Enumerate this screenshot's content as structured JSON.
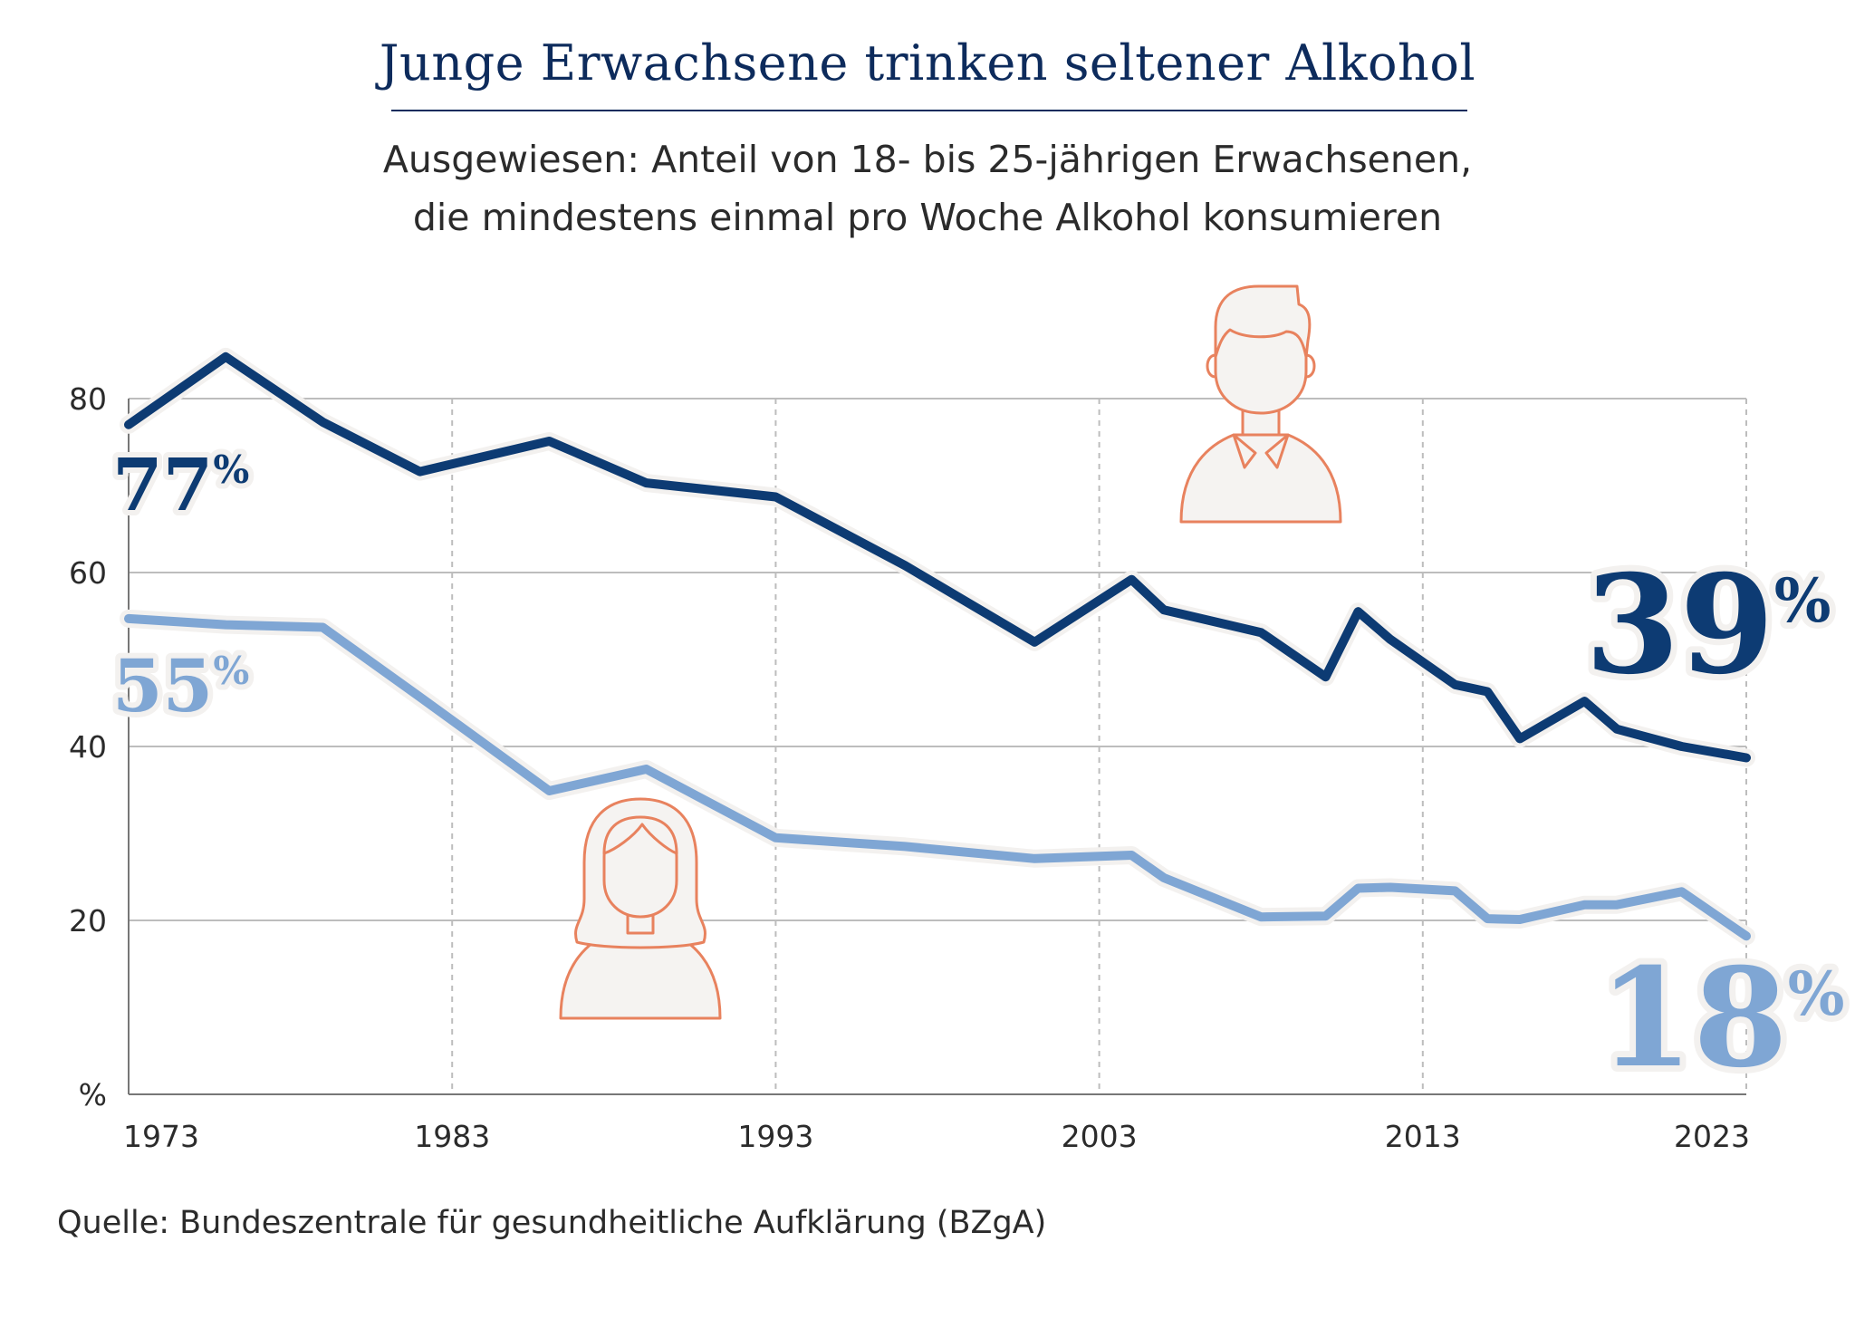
{
  "title": "Junge Erwachsene trinken seltener Alkohol",
  "subtitle_line1": "Ausgewiesen: Anteil von 18- bis 25-jährigen Erwachsenen,",
  "subtitle_line2": "die mindestens einmal pro Woche Alkohol konsumieren",
  "source": "Quelle: Bundeszentrale für gesundheitliche Aufklärung (BZgA)",
  "colors": {
    "men": "#0d3b73",
    "women": "#7fa6d4",
    "icon_stroke": "#e8825e",
    "icon_fill": "#f5f3f1",
    "grid": "#bdbdbd",
    "title": "#0d2b5c"
  },
  "icons": [
    "man-icon",
    "woman-icon"
  ],
  "chart_data": {
    "type": "line",
    "title": "Junge Erwachsene trinken seltener Alkohol",
    "ylabel": "%",
    "xlabel": "",
    "xlim": [
      1973,
      2023
    ],
    "ylim": [
      0,
      80
    ],
    "x_ticks": [
      "1973",
      "1983",
      "1993",
      "2003",
      "2013",
      "2023"
    ],
    "y_ticks": [
      "80",
      "60",
      "40",
      "20"
    ],
    "y_unit_label": "%",
    "grid": {
      "horizontal": true,
      "vertical": "dashed"
    },
    "series": [
      {
        "key": "men",
        "color": "#0d3b73",
        "start_label": "77",
        "end_label": "39",
        "points": [
          [
            1973,
            77
          ],
          [
            1976,
            84.8
          ],
          [
            1979,
            77.3
          ],
          [
            1982,
            71.6
          ],
          [
            1986,
            75.1
          ],
          [
            1989,
            70.3
          ],
          [
            1993,
            68.7
          ],
          [
            1997,
            60.8
          ],
          [
            2001,
            52.0
          ],
          [
            2004,
            59.2
          ],
          [
            2005,
            55.7
          ],
          [
            2008,
            53.1
          ],
          [
            2010,
            48.0
          ],
          [
            2011,
            55.5
          ],
          [
            2012,
            52.3
          ],
          [
            2014,
            47.1
          ],
          [
            2015,
            46.3
          ],
          [
            2016,
            40.9
          ],
          [
            2018,
            45.2
          ],
          [
            2019,
            42.0
          ],
          [
            2021,
            40.0
          ],
          [
            2023,
            38.7
          ]
        ]
      },
      {
        "key": "women",
        "color": "#7fa6d4",
        "start_label": "55",
        "end_label": "18",
        "points": [
          [
            1973,
            54.7
          ],
          [
            1976,
            54.0
          ],
          [
            1979,
            53.7
          ],
          [
            1982,
            45.7
          ],
          [
            1986,
            34.9
          ],
          [
            1989,
            37.4
          ],
          [
            1993,
            29.5
          ],
          [
            1997,
            28.5
          ],
          [
            2001,
            27.1
          ],
          [
            2004,
            27.5
          ],
          [
            2005,
            24.9
          ],
          [
            2008,
            20.4
          ],
          [
            2010,
            20.5
          ],
          [
            2011,
            23.7
          ],
          [
            2012,
            23.8
          ],
          [
            2014,
            23.4
          ],
          [
            2015,
            20.2
          ],
          [
            2016,
            20.1
          ],
          [
            2018,
            21.8
          ],
          [
            2019,
            21.8
          ],
          [
            2021,
            23.3
          ],
          [
            2023,
            18.2
          ]
        ]
      }
    ],
    "labels": {
      "percent_sign": "%",
      "men_start": "77",
      "men_end": "39",
      "women_start": "55",
      "women_end": "18"
    }
  }
}
